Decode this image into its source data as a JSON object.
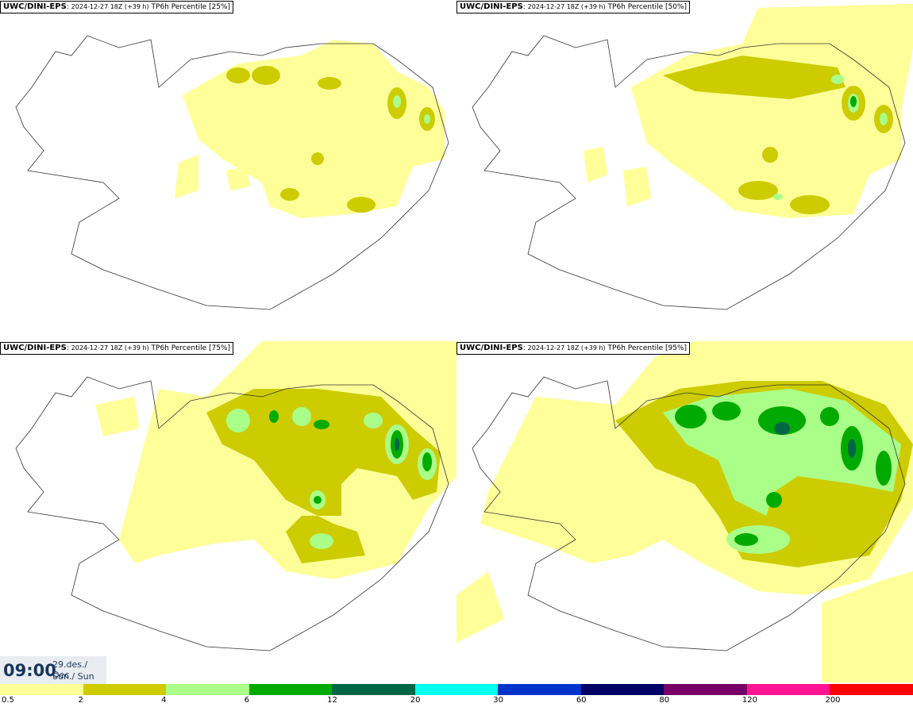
{
  "panels": [
    {
      "source": "UWC/DINI-EPS",
      "run": "2024-12-27 18Z (+39 h)",
      "product": "TP6h Percentile [25%]"
    },
    {
      "source": "UWC/DINI-EPS",
      "run": "2024-12-27 18Z (+39 h)",
      "product": "TP6h Percentile [50%]"
    },
    {
      "source": "UWC/DINI-EPS",
      "run": "2024-12-27 18Z (+39 h)",
      "product": "TP6h Percentile [75%]"
    },
    {
      "source": "UWC/DINI-EPS",
      "run": "2024-12-27 18Z (+39 h)",
      "product": "TP6h Percentile [95%]"
    }
  ],
  "valid_time": {
    "time": "09:00",
    "date": "29.des./ Dec",
    "day": "Sun./ Sun"
  },
  "legend": {
    "colors": [
      "#ffff99",
      "#cccc00",
      "#aaff88",
      "#00aa00",
      "#006644",
      "#00ffee",
      "#0033cc",
      "#000066",
      "#770066",
      "#ff1493",
      "#ff0000"
    ],
    "labels": [
      "0.5",
      "2",
      "4",
      "6",
      "12",
      "20",
      "30",
      "60",
      "80",
      "120",
      "200"
    ]
  }
}
